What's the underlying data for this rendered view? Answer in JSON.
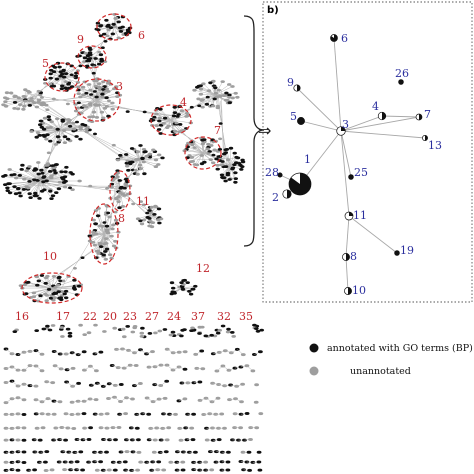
{
  "panel_b": {
    "label": "b)"
  },
  "arrow_symbol": "⇒",
  "colors": {
    "annotated": "#111111",
    "unannotated": "#9e9e9e",
    "edge": "#b5b5b5",
    "cluster_outline": "#d12a2a",
    "cluster_label": "#c0262c",
    "node_label": "#2b2f9e"
  },
  "clusters_a": [
    {
      "label": "6"
    },
    {
      "label": "9"
    },
    {
      "label": "5"
    },
    {
      "label": "3"
    },
    {
      "label": "4"
    },
    {
      "label": "7"
    },
    {
      "label": "11"
    },
    {
      "label": "8"
    },
    {
      "label": "10"
    },
    {
      "label": "12"
    }
  ],
  "component_labels": [
    "16",
    "17",
    "22",
    "20",
    "23",
    "27",
    "24",
    "37",
    "32",
    "35"
  ],
  "network_b": {
    "nodes": [
      {
        "label": "6"
      },
      {
        "label": "9"
      },
      {
        "label": "26"
      },
      {
        "label": "5"
      },
      {
        "label": "4"
      },
      {
        "label": "7"
      },
      {
        "label": "3"
      },
      {
        "label": "13"
      },
      {
        "label": "1"
      },
      {
        "label": "28"
      },
      {
        "label": "25"
      },
      {
        "label": "2"
      },
      {
        "label": "11"
      },
      {
        "label": "8"
      },
      {
        "label": "19"
      },
      {
        "label": "10"
      }
    ]
  },
  "legend": {
    "annotated": "annotated with GO terms (BP)",
    "unannotated": "unannotated"
  }
}
